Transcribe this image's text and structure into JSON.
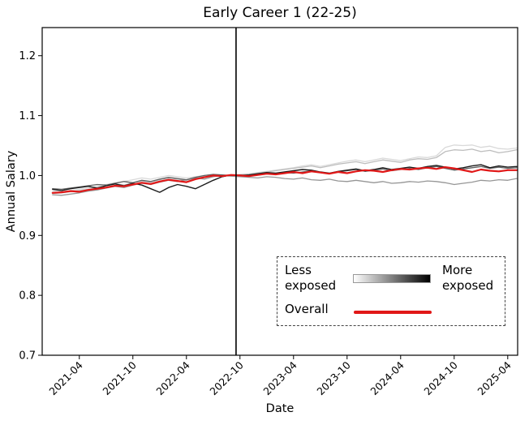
{
  "title": "Early Career 1 (22-25)",
  "legend": {
    "less_label": "Less exposed",
    "more_label": "More exposed",
    "overall_label": "Overall",
    "gradient_from": "#ffffff",
    "gradient_to": "#000000",
    "overall_color": "#e11717",
    "border_style": "dashed"
  },
  "chart_data": {
    "type": "line",
    "title": "Early Career 1 (22-25)",
    "xlabel": "Date",
    "ylabel": "Annual Salary",
    "x_start_month": "2021-01",
    "x_month_count": 53,
    "xlim_month_index": [
      -1.16,
      52.11
    ],
    "ylim": [
      0.7,
      1.247
    ],
    "yticks": [
      0.7,
      0.8,
      0.9,
      1.0,
      1.1,
      1.2
    ],
    "ytick_labels": [
      "0.7",
      "0.8",
      "0.9",
      "1.0",
      "1.1",
      "1.2"
    ],
    "xtick_month_indices": [
      3,
      9,
      15,
      21,
      27,
      33,
      39,
      45,
      51
    ],
    "xtick_labels": [
      "2021-04",
      "2021-10",
      "2022-04",
      "2022-10",
      "2023-04",
      "2023-10",
      "2024-04",
      "2024-10",
      "2025-04"
    ],
    "vline_month_index": 20.56,
    "grid": false,
    "legend_position": "lower right",
    "axis_color": "#000000",
    "series": [
      {
        "name": "exposure-quintile-1-least-exposed",
        "color": "#d9d9d9",
        "width": 1.3,
        "values": [
          0.974,
          0.973,
          0.975,
          0.977,
          0.979,
          0.982,
          0.985,
          0.988,
          0.99,
          0.993,
          0.996,
          0.994,
          0.997,
          1.0,
          0.998,
          0.996,
          0.998,
          1.0,
          1.002,
          1.0,
          1.001,
          1.002,
          1.003,
          1.005,
          1.007,
          1.009,
          1.011,
          1.013,
          1.016,
          1.018,
          1.015,
          1.018,
          1.021,
          1.024,
          1.026,
          1.023,
          1.026,
          1.029,
          1.027,
          1.025,
          1.028,
          1.031,
          1.03,
          1.033,
          1.047,
          1.051,
          1.05,
          1.051,
          1.047,
          1.049,
          1.045,
          1.044,
          1.046
        ]
      },
      {
        "name": "exposure-quintile-2",
        "color": "#bdbdbd",
        "width": 1.3,
        "values": [
          0.97,
          0.971,
          0.973,
          0.975,
          0.977,
          0.98,
          0.983,
          0.986,
          0.984,
          0.988,
          0.991,
          0.989,
          0.993,
          0.996,
          0.994,
          0.992,
          0.996,
          0.999,
          1.001,
          1.0,
          1.0,
          1.001,
          1.002,
          1.004,
          1.006,
          1.008,
          1.01,
          1.012,
          1.014,
          1.016,
          1.013,
          1.016,
          1.019,
          1.021,
          1.023,
          1.02,
          1.023,
          1.026,
          1.024,
          1.022,
          1.026,
          1.028,
          1.027,
          1.03,
          1.04,
          1.043,
          1.042,
          1.044,
          1.04,
          1.042,
          1.038,
          1.04,
          1.043
        ]
      },
      {
        "name": "exposure-quintile-3",
        "color": "#969696",
        "width": 1.3,
        "values": [
          0.968,
          0.967,
          0.969,
          0.971,
          0.974,
          0.976,
          0.979,
          0.982,
          0.98,
          0.984,
          0.987,
          0.985,
          0.989,
          0.992,
          0.99,
          0.993,
          0.996,
          0.994,
          0.998,
          1.0,
          0.999,
          0.998,
          0.997,
          0.996,
          0.998,
          0.997,
          0.995,
          0.994,
          0.996,
          0.993,
          0.992,
          0.994,
          0.991,
          0.99,
          0.992,
          0.99,
          0.988,
          0.99,
          0.987,
          0.988,
          0.99,
          0.989,
          0.991,
          0.99,
          0.988,
          0.985,
          0.987,
          0.989,
          0.992,
          0.991,
          0.993,
          0.992,
          0.995
        ]
      },
      {
        "name": "exposure-quintile-4",
        "color": "#5f5f5f",
        "width": 1.3,
        "values": [
          0.978,
          0.977,
          0.979,
          0.981,
          0.983,
          0.985,
          0.984,
          0.987,
          0.99,
          0.988,
          0.992,
          0.99,
          0.994,
          0.997,
          0.995,
          0.993,
          0.997,
          1.0,
          1.002,
          1.001,
          1.0,
          1.001,
          1.0,
          1.002,
          1.004,
          1.003,
          1.005,
          1.004,
          1.006,
          1.008,
          1.005,
          1.003,
          1.006,
          1.008,
          1.01,
          1.007,
          1.009,
          1.011,
          1.008,
          1.01,
          1.012,
          1.01,
          1.013,
          1.015,
          1.012,
          1.009,
          1.011,
          1.013,
          1.015,
          1.012,
          1.014,
          1.012,
          1.013
        ]
      },
      {
        "name": "exposure-quintile-5-most-exposed",
        "color": "#1c1c1c",
        "width": 1.4,
        "values": [
          0.977,
          0.975,
          0.978,
          0.98,
          0.982,
          0.979,
          0.983,
          0.986,
          0.983,
          0.987,
          0.984,
          0.978,
          0.972,
          0.98,
          0.985,
          0.982,
          0.978,
          0.985,
          0.992,
          0.998,
          1.001,
          1.0,
          1.001,
          1.003,
          1.005,
          1.004,
          1.006,
          1.008,
          1.01,
          1.009,
          1.006,
          1.004,
          1.007,
          1.009,
          1.011,
          1.008,
          1.01,
          1.013,
          1.01,
          1.012,
          1.014,
          1.012,
          1.015,
          1.017,
          1.014,
          1.011,
          1.013,
          1.016,
          1.018,
          1.013,
          1.016,
          1.014,
          1.015
        ]
      },
      {
        "name": "overall",
        "color": "#e11717",
        "width": 2.2,
        "values": [
          0.971,
          0.972,
          0.974,
          0.973,
          0.976,
          0.978,
          0.98,
          0.983,
          0.982,
          0.985,
          0.988,
          0.986,
          0.99,
          0.993,
          0.991,
          0.989,
          0.994,
          0.997,
          1.0,
          0.999,
          1.001,
          1.0,
          0.999,
          1.001,
          1.003,
          1.002,
          1.004,
          1.006,
          1.004,
          1.007,
          1.005,
          1.003,
          1.006,
          1.004,
          1.007,
          1.009,
          1.008,
          1.006,
          1.009,
          1.011,
          1.01,
          1.012,
          1.013,
          1.011,
          1.014,
          1.012,
          1.009,
          1.006,
          1.01,
          1.008,
          1.007,
          1.009,
          1.009
        ]
      }
    ]
  }
}
